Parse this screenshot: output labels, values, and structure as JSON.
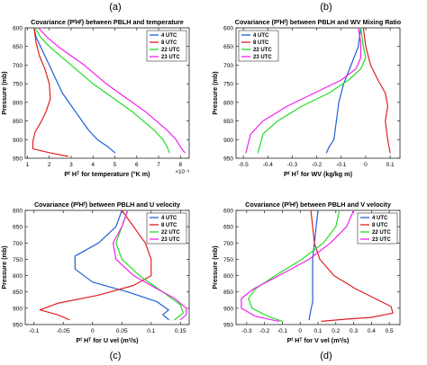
{
  "figure": {
    "panel_labels": [
      "(a)",
      "(b)",
      "(c)",
      "(d)"
    ],
    "colors": {
      "4 UTC": "#1f5fd6",
      "8 UTC": "#e02020",
      "22 UTC": "#22dd22",
      "23 UTC": "#ee22ee"
    }
  },
  "chart_data": [
    {
      "type": "line",
      "panel": "(a)",
      "title": "Covariance (PᶠHᶠ) between PBLH and temperature",
      "xlabel": "Pᶠ Hᵀ for temperature (°K m)",
      "ylabel": "Pressure (mb)",
      "x_exponent": "×10⁻³",
      "xlim": [
        0.9,
        8.4
      ],
      "ylim": [
        600,
        950
      ],
      "y_reversed": true,
      "xticks": [
        1,
        2,
        3,
        4,
        5,
        6,
        7,
        8
      ],
      "xtick_labels": [
        "1",
        "2",
        "3",
        "4",
        "5",
        "6",
        "7",
        "8"
      ],
      "yticks": [
        600,
        650,
        700,
        750,
        800,
        850,
        900,
        950
      ],
      "legend": {
        "position": "top-right",
        "entries": [
          "4 UTC",
          "8 UTC",
          "22 UTC",
          "23 UTC"
        ]
      },
      "series": [
        {
          "name": "4 UTC",
          "color": "#1f5fd6",
          "points": [
            [
              1.3,
              600
            ],
            [
              1.4,
              625
            ],
            [
              1.6,
              650
            ],
            [
              1.8,
              675
            ],
            [
              2.0,
              700
            ],
            [
              2.2,
              725
            ],
            [
              2.4,
              750
            ],
            [
              2.6,
              775
            ],
            [
              2.9,
              800
            ],
            [
              3.2,
              825
            ],
            [
              3.5,
              850
            ],
            [
              3.8,
              875
            ],
            [
              4.2,
              900
            ],
            [
              4.7,
              920
            ],
            [
              5.0,
              935
            ]
          ]
        },
        {
          "name": "8 UTC",
          "color": "#e02020",
          "points": [
            [
              1.3,
              600
            ],
            [
              1.4,
              640
            ],
            [
              1.55,
              675
            ],
            [
              1.8,
              710
            ],
            [
              2.0,
              750
            ],
            [
              2.05,
              790
            ],
            [
              1.85,
              825
            ],
            [
              1.6,
              855
            ],
            [
              1.35,
              880
            ],
            [
              1.25,
              905
            ],
            [
              1.25,
              925
            ],
            [
              2.0,
              935
            ],
            [
              2.85,
              945
            ]
          ]
        },
        {
          "name": "22 UTC",
          "color": "#22dd22",
          "points": [
            [
              1.35,
              600
            ],
            [
              1.6,
              625
            ],
            [
              2.0,
              650
            ],
            [
              2.5,
              675
            ],
            [
              3.0,
              700
            ],
            [
              3.5,
              725
            ],
            [
              4.0,
              750
            ],
            [
              4.6,
              775
            ],
            [
              5.2,
              800
            ],
            [
              5.8,
              825
            ],
            [
              6.3,
              850
            ],
            [
              6.8,
              875
            ],
            [
              7.2,
              900
            ],
            [
              7.4,
              920
            ],
            [
              7.5,
              935
            ]
          ]
        },
        {
          "name": "23 UTC",
          "color": "#ee22ee",
          "points": [
            [
              1.5,
              600
            ],
            [
              1.9,
              625
            ],
            [
              2.4,
              650
            ],
            [
              3.0,
              675
            ],
            [
              3.6,
              700
            ],
            [
              4.1,
              725
            ],
            [
              4.6,
              750
            ],
            [
              5.2,
              775
            ],
            [
              5.8,
              800
            ],
            [
              6.4,
              825
            ],
            [
              6.9,
              850
            ],
            [
              7.4,
              875
            ],
            [
              7.8,
              900
            ],
            [
              8.0,
              920
            ],
            [
              8.2,
              935
            ]
          ]
        }
      ]
    },
    {
      "type": "line",
      "panel": "(b)",
      "title": "Covariance (PᶠHᶠ) between PBLH and WV Mixing Ratio",
      "xlabel": "Pᶠ Hᵀ for WV (kg/kg m)",
      "ylabel": "Pressure (mb)",
      "xlim": [
        -0.53,
        0.14
      ],
      "ylim": [
        600,
        950
      ],
      "y_reversed": true,
      "xticks": [
        -0.5,
        -0.4,
        -0.3,
        -0.2,
        -0.1,
        0,
        0.1
      ],
      "xtick_labels": [
        "-0.5",
        "-0.4",
        "-0.3",
        "-0.2",
        "-0.1",
        "0",
        "0.1"
      ],
      "yticks": [
        600,
        650,
        700,
        750,
        800,
        850,
        900,
        950
      ],
      "legend": {
        "position": "top-left",
        "entries": [
          "4 UTC",
          "8 UTC",
          "22 UTC",
          "23 UTC"
        ]
      },
      "series": [
        {
          "name": "4 UTC",
          "color": "#1f5fd6",
          "points": [
            [
              -0.02,
              600
            ],
            [
              -0.03,
              650
            ],
            [
              -0.06,
              700
            ],
            [
              -0.09,
              750
            ],
            [
              -0.11,
              800
            ],
            [
              -0.12,
              850
            ],
            [
              -0.13,
              900
            ],
            [
              -0.15,
              920
            ],
            [
              -0.16,
              935
            ]
          ]
        },
        {
          "name": "8 UTC",
          "color": "#e02020",
          "points": [
            [
              -0.01,
              600
            ],
            [
              0.0,
              650
            ],
            [
              0.02,
              700
            ],
            [
              0.05,
              740
            ],
            [
              0.08,
              775
            ],
            [
              0.09,
              810
            ],
            [
              0.08,
              850
            ],
            [
              0.09,
              900
            ],
            [
              0.1,
              935
            ]
          ]
        },
        {
          "name": "22 UTC",
          "color": "#22dd22",
          "points": [
            [
              -0.02,
              600
            ],
            [
              -0.01,
              650
            ],
            [
              0.0,
              680
            ],
            [
              -0.02,
              710
            ],
            [
              -0.07,
              740
            ],
            [
              -0.15,
              775
            ],
            [
              -0.26,
              810
            ],
            [
              -0.36,
              850
            ],
            [
              -0.42,
              885
            ],
            [
              -0.44,
              935
            ]
          ]
        },
        {
          "name": "23 UTC",
          "color": "#ee22ee",
          "points": [
            [
              -0.03,
              600
            ],
            [
              -0.02,
              640
            ],
            [
              -0.02,
              680
            ],
            [
              -0.04,
              710
            ],
            [
              -0.1,
              740
            ],
            [
              -0.21,
              775
            ],
            [
              -0.32,
              810
            ],
            [
              -0.42,
              850
            ],
            [
              -0.47,
              885
            ],
            [
              -0.49,
              935
            ]
          ]
        }
      ]
    },
    {
      "type": "line",
      "panel": "(c)",
      "title": "Covariance (PᶠHᶠ) between PBLH and U velocity",
      "xlabel": "Pᶠ Hᵀ for U vel (m²/s)",
      "ylabel": "Pressure (mb)",
      "xlim": [
        -0.115,
        0.165
      ],
      "ylim": [
        600,
        950
      ],
      "y_reversed": true,
      "xticks": [
        -0.1,
        -0.05,
        0,
        0.05,
        0.1,
        0.15
      ],
      "xtick_labels": [
        "-0.1",
        "-0.05",
        "0",
        "0.05",
        "0.1",
        "0.15"
      ],
      "yticks": [
        600,
        650,
        700,
        750,
        800,
        850,
        900,
        950
      ],
      "legend": {
        "position": "top-right",
        "entries": [
          "4 UTC",
          "8 UTC",
          "22 UTC",
          "23 UTC"
        ]
      },
      "series": [
        {
          "name": "4 UTC",
          "color": "#1f5fd6",
          "points": [
            [
              0.05,
              600
            ],
            [
              0.04,
              650
            ],
            [
              0.01,
              700
            ],
            [
              -0.03,
              740
            ],
            [
              -0.03,
              780
            ],
            [
              0.0,
              820
            ],
            [
              0.06,
              850
            ],
            [
              0.11,
              880
            ],
            [
              0.13,
              905
            ],
            [
              0.12,
              920
            ],
            [
              0.13,
              935
            ]
          ]
        },
        {
          "name": "8 UTC",
          "color": "#e02020",
          "points": [
            [
              0.05,
              600
            ],
            [
              0.07,
              650
            ],
            [
              0.09,
              700
            ],
            [
              0.1,
              750
            ],
            [
              0.1,
              800
            ],
            [
              0.07,
              830
            ],
            [
              0.01,
              860
            ],
            [
              -0.06,
              885
            ],
            [
              -0.09,
              905
            ],
            [
              -0.06,
              920
            ],
            [
              -0.04,
              935
            ]
          ]
        },
        {
          "name": "22 UTC",
          "color": "#22dd22",
          "points": [
            [
              0.06,
              600
            ],
            [
              0.05,
              650
            ],
            [
              0.04,
              700
            ],
            [
              0.05,
              750
            ],
            [
              0.08,
              800
            ],
            [
              0.12,
              850
            ],
            [
              0.15,
              890
            ],
            [
              0.155,
              915
            ],
            [
              0.14,
              935
            ]
          ]
        },
        {
          "name": "23 UTC",
          "color": "#ee22ee",
          "points": [
            [
              0.06,
              600
            ],
            [
              0.05,
              650
            ],
            [
              0.035,
              700
            ],
            [
              0.04,
              750
            ],
            [
              0.07,
              800
            ],
            [
              0.11,
              840
            ],
            [
              0.14,
              870
            ],
            [
              0.16,
              900
            ],
            [
              0.16,
              920
            ],
            [
              0.15,
              935
            ]
          ]
        }
      ]
    },
    {
      "type": "line",
      "panel": "(d)",
      "title": "Covariance (PᶠHᶠ) between PBLH and V velocity",
      "xlabel": "Pᶠ Hᵀ for V vel (m²/s)",
      "ylabel": "Pressure (mb)",
      "xlim": [
        -0.36,
        0.56
      ],
      "ylim": [
        600,
        950
      ],
      "y_reversed": true,
      "xticks": [
        -0.3,
        -0.2,
        -0.1,
        0,
        0.1,
        0.2,
        0.3,
        0.4,
        0.5
      ],
      "xtick_labels": [
        "-0.3",
        "-0.2",
        "-0.1",
        "0",
        "0.1",
        "0.2",
        "0.3",
        "0.4",
        "0.5"
      ],
      "yticks": [
        600,
        650,
        700,
        750,
        800,
        850,
        900,
        950
      ],
      "legend": {
        "position": "top-right",
        "entries": [
          "4 UTC",
          "8 UTC",
          "22 UTC",
          "23 UTC"
        ]
      },
      "series": [
        {
          "name": "4 UTC",
          "color": "#1f5fd6",
          "points": [
            [
              0.1,
              600
            ],
            [
              0.09,
              650
            ],
            [
              0.08,
              700
            ],
            [
              0.07,
              750
            ],
            [
              0.07,
              800
            ],
            [
              0.07,
              850
            ],
            [
              0.07,
              880
            ],
            [
              0.06,
              905
            ],
            [
              0.05,
              935
            ]
          ]
        },
        {
          "name": "8 UTC",
          "color": "#e02020",
          "points": [
            [
              0.06,
              600
            ],
            [
              0.07,
              650
            ],
            [
              0.08,
              700
            ],
            [
              0.11,
              750
            ],
            [
              0.19,
              800
            ],
            [
              0.31,
              840
            ],
            [
              0.42,
              870
            ],
            [
              0.51,
              895
            ],
            [
              0.52,
              915
            ],
            [
              0.4,
              928
            ],
            [
              0.22,
              935
            ],
            [
              0.12,
              940
            ]
          ]
        },
        {
          "name": "22 UTC",
          "color": "#22dd22",
          "points": [
            [
              0.22,
              600
            ],
            [
              0.2,
              650
            ],
            [
              0.13,
              700
            ],
            [
              0.01,
              750
            ],
            [
              -0.14,
              800
            ],
            [
              -0.25,
              840
            ],
            [
              -0.29,
              870
            ],
            [
              -0.27,
              900
            ],
            [
              -0.18,
              925
            ],
            [
              -0.1,
              940
            ]
          ]
        },
        {
          "name": "23 UTC",
          "color": "#ee22ee",
          "points": [
            [
              0.3,
              600
            ],
            [
              0.26,
              650
            ],
            [
              0.17,
              700
            ],
            [
              0.05,
              750
            ],
            [
              -0.12,
              800
            ],
            [
              -0.26,
              840
            ],
            [
              -0.33,
              870
            ],
            [
              -0.33,
              900
            ],
            [
              -0.25,
              925
            ],
            [
              -0.12,
              940
            ]
          ]
        }
      ]
    }
  ]
}
